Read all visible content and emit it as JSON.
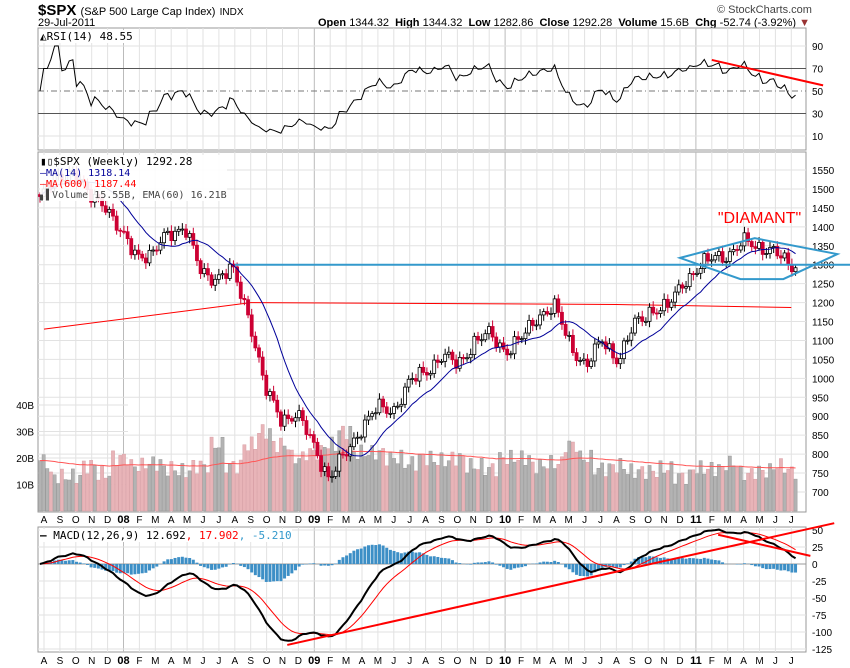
{
  "header": {
    "symbol": "$SPX",
    "name": "(S&P 500 Large Cap Index)",
    "exchange": "INDX",
    "date": "29-Jul-2011",
    "copyright": "© StockCharts.com",
    "open_label": "Open",
    "open": "1344.32",
    "high_label": "High",
    "high": "1344.32",
    "low_label": "Low",
    "low": "1282.86",
    "close_label": "Close",
    "close": "1292.28",
    "volume_label": "Volume",
    "volume": "15.6B",
    "chg_label": "Chg",
    "chg": "-52.74 (-3.92%)"
  },
  "legends": {
    "rsi": "RSI(14) 48.55",
    "price": "$SPX (Weekly) 1292.28",
    "ma14": "MA(14) 1318.14",
    "ma600": "MA(600) 1187.44",
    "volume": "Volume 15.55B, EMA(60) 16.21B",
    "macd_name": "MACD(12,26,9) 12.692",
    "macd_signal": ", 17.902",
    "macd_hist": ", -5.210"
  },
  "colors": {
    "up": "#000000",
    "down": "#cc0033",
    "ma14": "#000099",
    "ma600": "#ff0000",
    "annot_blue": "#3399cc",
    "annot_red": "#ff0000",
    "vol_up": "#b3b3b3",
    "vol_down": "#e8b4b8",
    "hist": "#3d8fc6"
  },
  "chart_data": {
    "type": "candlestick",
    "start": "Aug 2007",
    "end": "Jul 2011",
    "interval": "weekly",
    "monthly_close": [
      1474,
      1527,
      1549,
      1481,
      1468,
      1379,
      1331,
      1323,
      1386,
      1400,
      1280,
      1267,
      1283,
      1166,
      969,
      896,
      903,
      826,
      735,
      798,
      873,
      919,
      919,
      987,
      1021,
      1057,
      1036,
      1096,
      1115,
      1074,
      1104,
      1169,
      1187,
      1089,
      1031,
      1102,
      1049,
      1141,
      1183,
      1181,
      1258,
      1286,
      1327,
      1326,
      1364,
      1345,
      1321,
      1292
    ],
    "monthly_volume_b": [
      19,
      13,
      13,
      17,
      14,
      20,
      17,
      18,
      16,
      15,
      17,
      25,
      17,
      25,
      30,
      25,
      20,
      22,
      25,
      30,
      22,
      22,
      20,
      18,
      20,
      19,
      20,
      17,
      16,
      20,
      20,
      17,
      18,
      25,
      20,
      16,
      17,
      15,
      15,
      16,
      13,
      16,
      16,
      18,
      14,
      15,
      17,
      15
    ],
    "ma600": [
      [
        0,
        1130
      ],
      [
        13,
        1200
      ],
      [
        36,
        1195
      ],
      [
        47,
        1187
      ]
    ],
    "month_labels": [
      "A",
      "S",
      "O",
      "N",
      "D",
      "08",
      "F",
      "M",
      "A",
      "M",
      "J",
      "J",
      "A",
      "S",
      "O",
      "N",
      "D",
      "09",
      "F",
      "M",
      "A",
      "M",
      "J",
      "J",
      "A",
      "S",
      "O",
      "N",
      "D",
      "10",
      "F",
      "M",
      "A",
      "M",
      "J",
      "J",
      "A",
      "S",
      "O",
      "N",
      "D",
      "11",
      "F",
      "M",
      "A",
      "M",
      "J",
      "J"
    ],
    "price_ticks": [
      700,
      750,
      800,
      850,
      900,
      950,
      1000,
      1050,
      1100,
      1150,
      1200,
      1250,
      1300,
      1350,
      1400,
      1450,
      1500,
      1550
    ],
    "rsi_ticks": [
      10,
      30,
      50,
      70,
      90
    ],
    "volume_ticks": [
      "10B",
      "20B",
      "30B",
      "40B"
    ],
    "macd_ticks": [
      50,
      25,
      0,
      -25,
      -50,
      -75,
      -100,
      -125
    ],
    "annotations": {
      "label": "\"DIAMANT\"",
      "label_at": [
        45,
        1410
      ],
      "diamond": [
        [
          40,
          1318
        ],
        [
          44.7,
          1370
        ],
        [
          49.9,
          1328
        ],
        [
          46.5,
          1262
        ],
        [
          43.8,
          1262
        ]
      ],
      "support_line": {
        "value": 1300,
        "from_month": 12
      },
      "rsi_trendline": [
        [
          42,
          77.6
        ],
        [
          49,
          55
        ]
      ],
      "macd_trendline_long": [
        [
          15.3,
          -119
        ],
        [
          49.7,
          60
        ]
      ],
      "macd_trendline_short": [
        [
          42.4,
          43
        ],
        [
          48.2,
          12
        ]
      ]
    }
  }
}
